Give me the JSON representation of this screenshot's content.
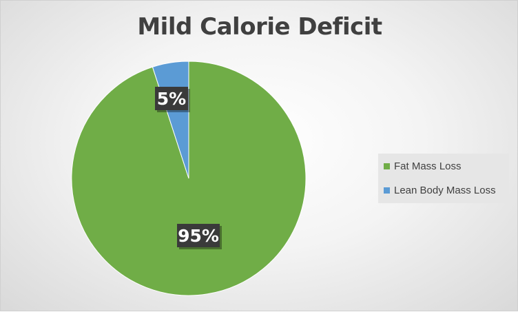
{
  "chart_data": {
    "type": "pie",
    "title": "Mild Calorie Deficit",
    "slices": [
      {
        "label": "Fat Mass Loss",
        "value": 95,
        "display": "95%",
        "color": "#70ad47"
      },
      {
        "label": "Lean Body Mass Loss",
        "value": 5,
        "display": "5%",
        "color": "#5b9bd5"
      }
    ],
    "legend_position": "right",
    "data_label_style": "dark box"
  }
}
